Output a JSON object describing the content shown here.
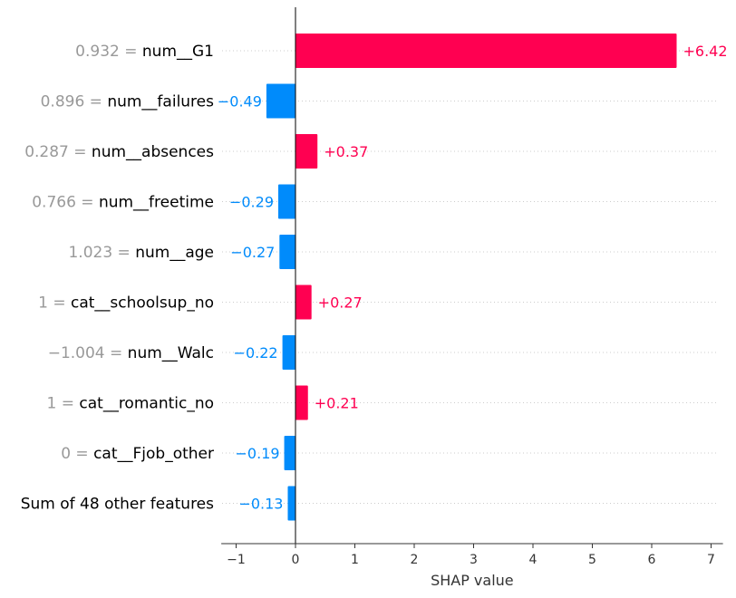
{
  "chart_data": {
    "type": "bar",
    "orientation": "horizontal",
    "xlabel": "SHAP value",
    "xlim": [
      -1.25,
      7.2
    ],
    "xticks": [
      -1,
      0,
      1,
      2,
      3,
      4,
      5,
      6,
      7
    ],
    "xtick_labels": [
      "−1",
      "0",
      "1",
      "2",
      "3",
      "4",
      "5",
      "6",
      "7"
    ],
    "grid": "horizontal dotted guides per row",
    "colors": {
      "positive": "#ff0051",
      "negative": "#008bfb",
      "value_text": "#999999"
    },
    "rows": [
      {
        "value_text": "0.932",
        "name": "num__G1",
        "shap": 6.42,
        "label": "+6.42"
      },
      {
        "value_text": "0.896",
        "name": "num__failures",
        "shap": -0.49,
        "label": "−0.49"
      },
      {
        "value_text": "0.287",
        "name": "num__absences",
        "shap": 0.37,
        "label": "+0.37"
      },
      {
        "value_text": "0.766",
        "name": "num__freetime",
        "shap": -0.29,
        "label": "−0.29"
      },
      {
        "value_text": "1.023",
        "name": "num__age",
        "shap": -0.27,
        "label": "−0.27"
      },
      {
        "value_text": "1",
        "name": "cat__schoolsup_no",
        "shap": 0.27,
        "label": "+0.27"
      },
      {
        "value_text": "−1.004",
        "name": "num__Walc",
        "shap": -0.22,
        "label": "−0.22"
      },
      {
        "value_text": "1",
        "name": "cat__romantic_no",
        "shap": 0.21,
        "label": "+0.21"
      },
      {
        "value_text": "0",
        "name": "cat__Fjob_other",
        "shap": -0.19,
        "label": "−0.19"
      },
      {
        "value_text": "",
        "name": "Sum of 48 other features",
        "shap": -0.13,
        "label": "−0.13"
      }
    ]
  }
}
